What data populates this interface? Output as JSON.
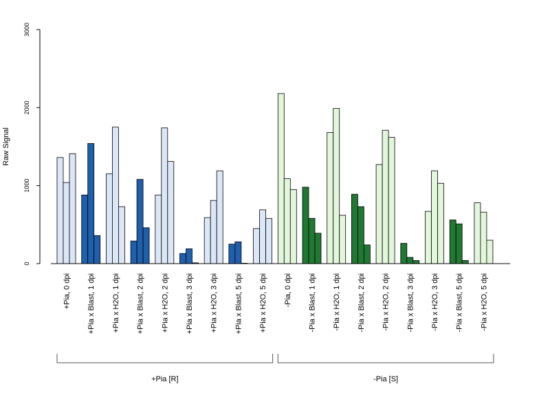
{
  "chart_data": {
    "type": "bar",
    "ylabel": "Raw Signal",
    "ylim": [
      0,
      3000
    ],
    "yticks": [
      0,
      1000,
      2000,
      3000
    ],
    "colors": {
      "light_blue": "#dbe7f6",
      "dark_blue": "#1f5fac",
      "light_green": "#e2f6dc",
      "dark_green": "#207832",
      "stroke": "#000000"
    },
    "groups": [
      {
        "label": "+Pia [R]",
        "category_indices": [
          0,
          1,
          2,
          3,
          4,
          5,
          6,
          7,
          8
        ]
      },
      {
        "label": "-Pia [S]",
        "category_indices": [
          9,
          10,
          11,
          12,
          13,
          14,
          15,
          16,
          17
        ]
      }
    ],
    "categories": [
      {
        "label": "+Pia, 0 dpi",
        "tone": "light_blue",
        "values": [
          1360,
          1040,
          1410
        ]
      },
      {
        "label": "+Pia x Blast, 1 dpi",
        "tone": "dark_blue",
        "values": [
          880,
          1540,
          360
        ]
      },
      {
        "label": "+Pia x H2O, 1 dpi",
        "tone": "light_blue",
        "values": [
          1150,
          1750,
          730
        ]
      },
      {
        "label": "+Pia x Blast, 2 dpi",
        "tone": "dark_blue",
        "values": [
          290,
          1080,
          460
        ]
      },
      {
        "label": "+Pia x H2O, 2 dpi",
        "tone": "light_blue",
        "values": [
          880,
          1740,
          1310
        ]
      },
      {
        "label": "+Pia x Blast, 3 dpi",
        "tone": "dark_blue",
        "values": [
          130,
          190,
          10
        ]
      },
      {
        "label": "+Pia x H2O, 3 dpi",
        "tone": "light_blue",
        "values": [
          590,
          810,
          1190
        ]
      },
      {
        "label": "+Pia x Blast, 5 dpi",
        "tone": "dark_blue",
        "values": [
          250,
          280,
          5
        ]
      },
      {
        "label": "+Pia x H2O, 5 dpi",
        "tone": "light_blue",
        "values": [
          450,
          690,
          580
        ]
      },
      {
        "label": "-Pia, 0 dpi",
        "tone": "light_green",
        "values": [
          2180,
          1090,
          950
        ]
      },
      {
        "label": "-Pia x Blast, 1 dpi",
        "tone": "dark_green",
        "values": [
          980,
          580,
          390
        ]
      },
      {
        "label": "-Pia x H2O, 1 dpi",
        "tone": "light_green",
        "values": [
          1680,
          1990,
          620
        ]
      },
      {
        "label": "-Pia x Blast, 2 dpi",
        "tone": "dark_green",
        "values": [
          890,
          730,
          240
        ]
      },
      {
        "label": "-Pia x H2O, 2 dpi",
        "tone": "light_green",
        "values": [
          1270,
          1710,
          1620
        ]
      },
      {
        "label": "-Pia x Blast, 3 dpi",
        "tone": "dark_green",
        "values": [
          260,
          80,
          40
        ]
      },
      {
        "label": "-Pia x H2O, 3 dpi",
        "tone": "light_green",
        "values": [
          670,
          1190,
          1030
        ]
      },
      {
        "label": "-Pia x Blast, 5 dpi",
        "tone": "dark_green",
        "values": [
          560,
          510,
          40
        ]
      },
      {
        "label": "-Pia x H2O, 5 dpi",
        "tone": "light_green",
        "values": [
          780,
          660,
          300
        ]
      }
    ]
  }
}
